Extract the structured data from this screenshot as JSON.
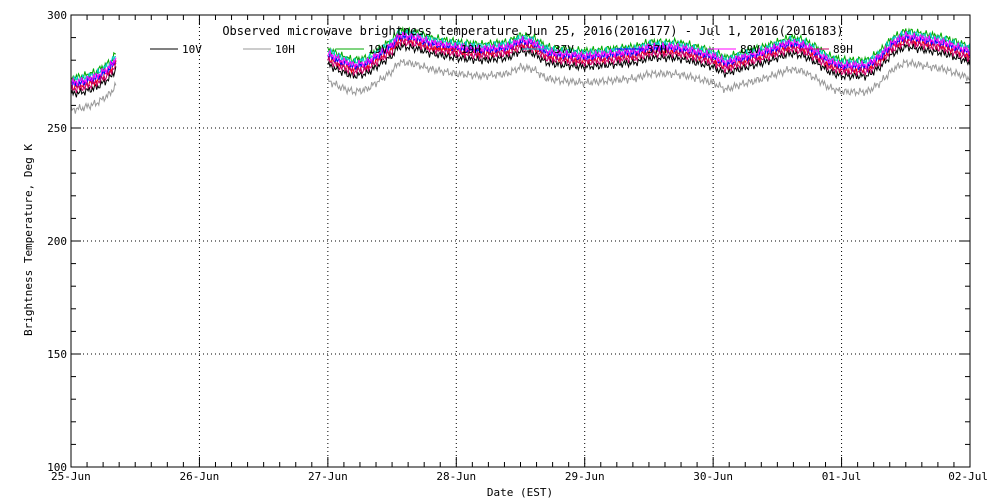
{
  "chart_data": {
    "type": "line",
    "title": "Observed microwave brightness temperature Jun 25, 2016(2016177) - Jul  1, 2016(2016183)",
    "xlabel": "Date (EST)",
    "ylabel": "Brightness Temperature, Deg K",
    "ylim": [
      100,
      300
    ],
    "xlim": [
      0,
      7
    ],
    "grid": true,
    "legend_position": "top",
    "x_ticks": [
      {
        "x": 0,
        "label": "25-Jun"
      },
      {
        "x": 1,
        "label": "26-Jun"
      },
      {
        "x": 2,
        "label": "27-Jun"
      },
      {
        "x": 3,
        "label": "28-Jun"
      },
      {
        "x": 4,
        "label": "29-Jun"
      },
      {
        "x": 5,
        "label": "30-Jun"
      },
      {
        "x": 6,
        "label": "01-Jul"
      },
      {
        "x": 7,
        "label": "02-Jul"
      }
    ],
    "y_ticks": [
      100,
      150,
      200,
      250,
      300
    ],
    "data_gap": [
      0.35,
      2.0
    ],
    "base_curve": [
      [
        0.0,
        263
      ],
      [
        0.1,
        264
      ],
      [
        0.2,
        266
      ],
      [
        0.3,
        270
      ],
      [
        0.35,
        274
      ],
      [
        2.0,
        276
      ],
      [
        2.1,
        273
      ],
      [
        2.2,
        271
      ],
      [
        2.3,
        272
      ],
      [
        2.4,
        276
      ],
      [
        2.5,
        280
      ],
      [
        2.55,
        284
      ],
      [
        2.6,
        284
      ],
      [
        2.7,
        283
      ],
      [
        2.8,
        281
      ],
      [
        3.0,
        279
      ],
      [
        3.2,
        278
      ],
      [
        3.4,
        279
      ],
      [
        3.5,
        282
      ],
      [
        3.6,
        281
      ],
      [
        3.7,
        277
      ],
      [
        3.8,
        276
      ],
      [
        4.0,
        275
      ],
      [
        4.2,
        276
      ],
      [
        4.4,
        277
      ],
      [
        4.5,
        279
      ],
      [
        4.6,
        279
      ],
      [
        4.7,
        279
      ],
      [
        4.8,
        278
      ],
      [
        5.0,
        275
      ],
      [
        5.1,
        272
      ],
      [
        5.2,
        274
      ],
      [
        5.4,
        277
      ],
      [
        5.55,
        280
      ],
      [
        5.6,
        281
      ],
      [
        5.7,
        280
      ],
      [
        5.8,
        277
      ],
      [
        5.9,
        273
      ],
      [
        6.0,
        271
      ],
      [
        6.2,
        271
      ],
      [
        6.3,
        275
      ],
      [
        6.4,
        281
      ],
      [
        6.5,
        284
      ],
      [
        6.6,
        283
      ],
      [
        6.7,
        282
      ],
      [
        6.8,
        281
      ],
      [
        6.9,
        279
      ],
      [
        7.0,
        277
      ]
    ],
    "series": [
      {
        "name": "10V",
        "color": "#000000",
        "offset": 2
      },
      {
        "name": "10H",
        "color": "#999999",
        "offset": -5
      },
      {
        "name": "19V",
        "color": "#00aa00",
        "offset": 9
      },
      {
        "name": "19H",
        "color": "#ff0000",
        "offset": 5
      },
      {
        "name": "37V",
        "color": "#00cccc",
        "offset": 8
      },
      {
        "name": "37H",
        "color": "#0000ff",
        "offset": 6
      },
      {
        "name": "89V",
        "color": "#ff00ff",
        "offset": 7
      },
      {
        "name": "89H",
        "color": "#cc0066",
        "offset": 4
      }
    ]
  }
}
